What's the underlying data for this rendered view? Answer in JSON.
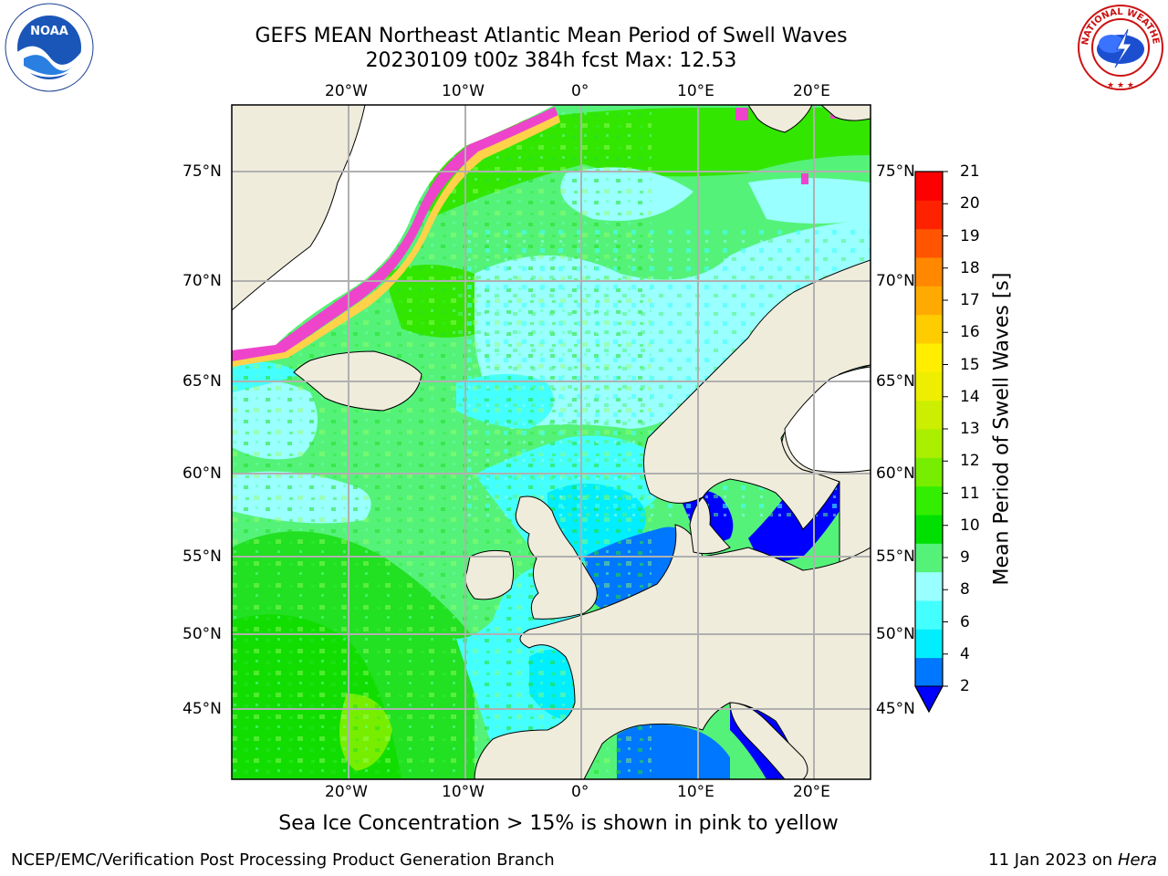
{
  "header": {
    "title_line1": "GEFS MEAN Northeast Atlantic Mean Period of Swell Waves",
    "title_line2": "20230109 t00z 384h fcst   Max: 12.53"
  },
  "logos": {
    "left_text": "NOAA",
    "right_text": "NATIONAL WEATHER SERVICE"
  },
  "map": {
    "lon_labels_top": [
      "20°W",
      "10°W",
      "0°",
      "10°E",
      "20°E"
    ],
    "lon_labels_bottom": [
      "20°W",
      "10°W",
      "0°",
      "10°E",
      "20°E"
    ],
    "lat_labels_left": [
      "75°N",
      "70°N",
      "65°N",
      "60°N",
      "55°N",
      "50°N",
      "45°N"
    ],
    "lat_labels_right": [
      "75°N",
      "70°N",
      "65°N",
      "60°N",
      "55°N",
      "50°N",
      "45°N"
    ],
    "colors": {
      "land": "#efecdc",
      "ice_free_white": "#ffffff",
      "ice_pink": "#ee44cc",
      "ice_yellow": "#ffd24a",
      "grid": "#b0b0b0"
    }
  },
  "colorbar": {
    "title": "Mean Period of Swell Waves [s]",
    "ticks": [
      "21",
      "20",
      "19",
      "18",
      "17",
      "16",
      "15",
      "14",
      "13",
      "12",
      "11",
      "10",
      "9",
      "8",
      "6",
      "4",
      "2"
    ],
    "colors_bottom_to_top": [
      "#0077ff",
      "#00eeff",
      "#44ffff",
      "#99ffff",
      "#55f27a",
      "#00e000",
      "#33ee00",
      "#77ee00",
      "#aaee00",
      "#ccee00",
      "#eeee00",
      "#ffee00",
      "#ffcc00",
      "#ffaa00",
      "#ff8800",
      "#ff5500",
      "#ff2200",
      "#ff0000"
    ],
    "extend_color": "#0000ff"
  },
  "footer": {
    "subtitle": "Sea Ice Concentration > 15% is shown in pink to yellow",
    "left": "NCEP/EMC/Verification Post Processing Product Generation Branch",
    "right_date": "11 Jan 2023 on",
    "right_host": "Hera"
  }
}
